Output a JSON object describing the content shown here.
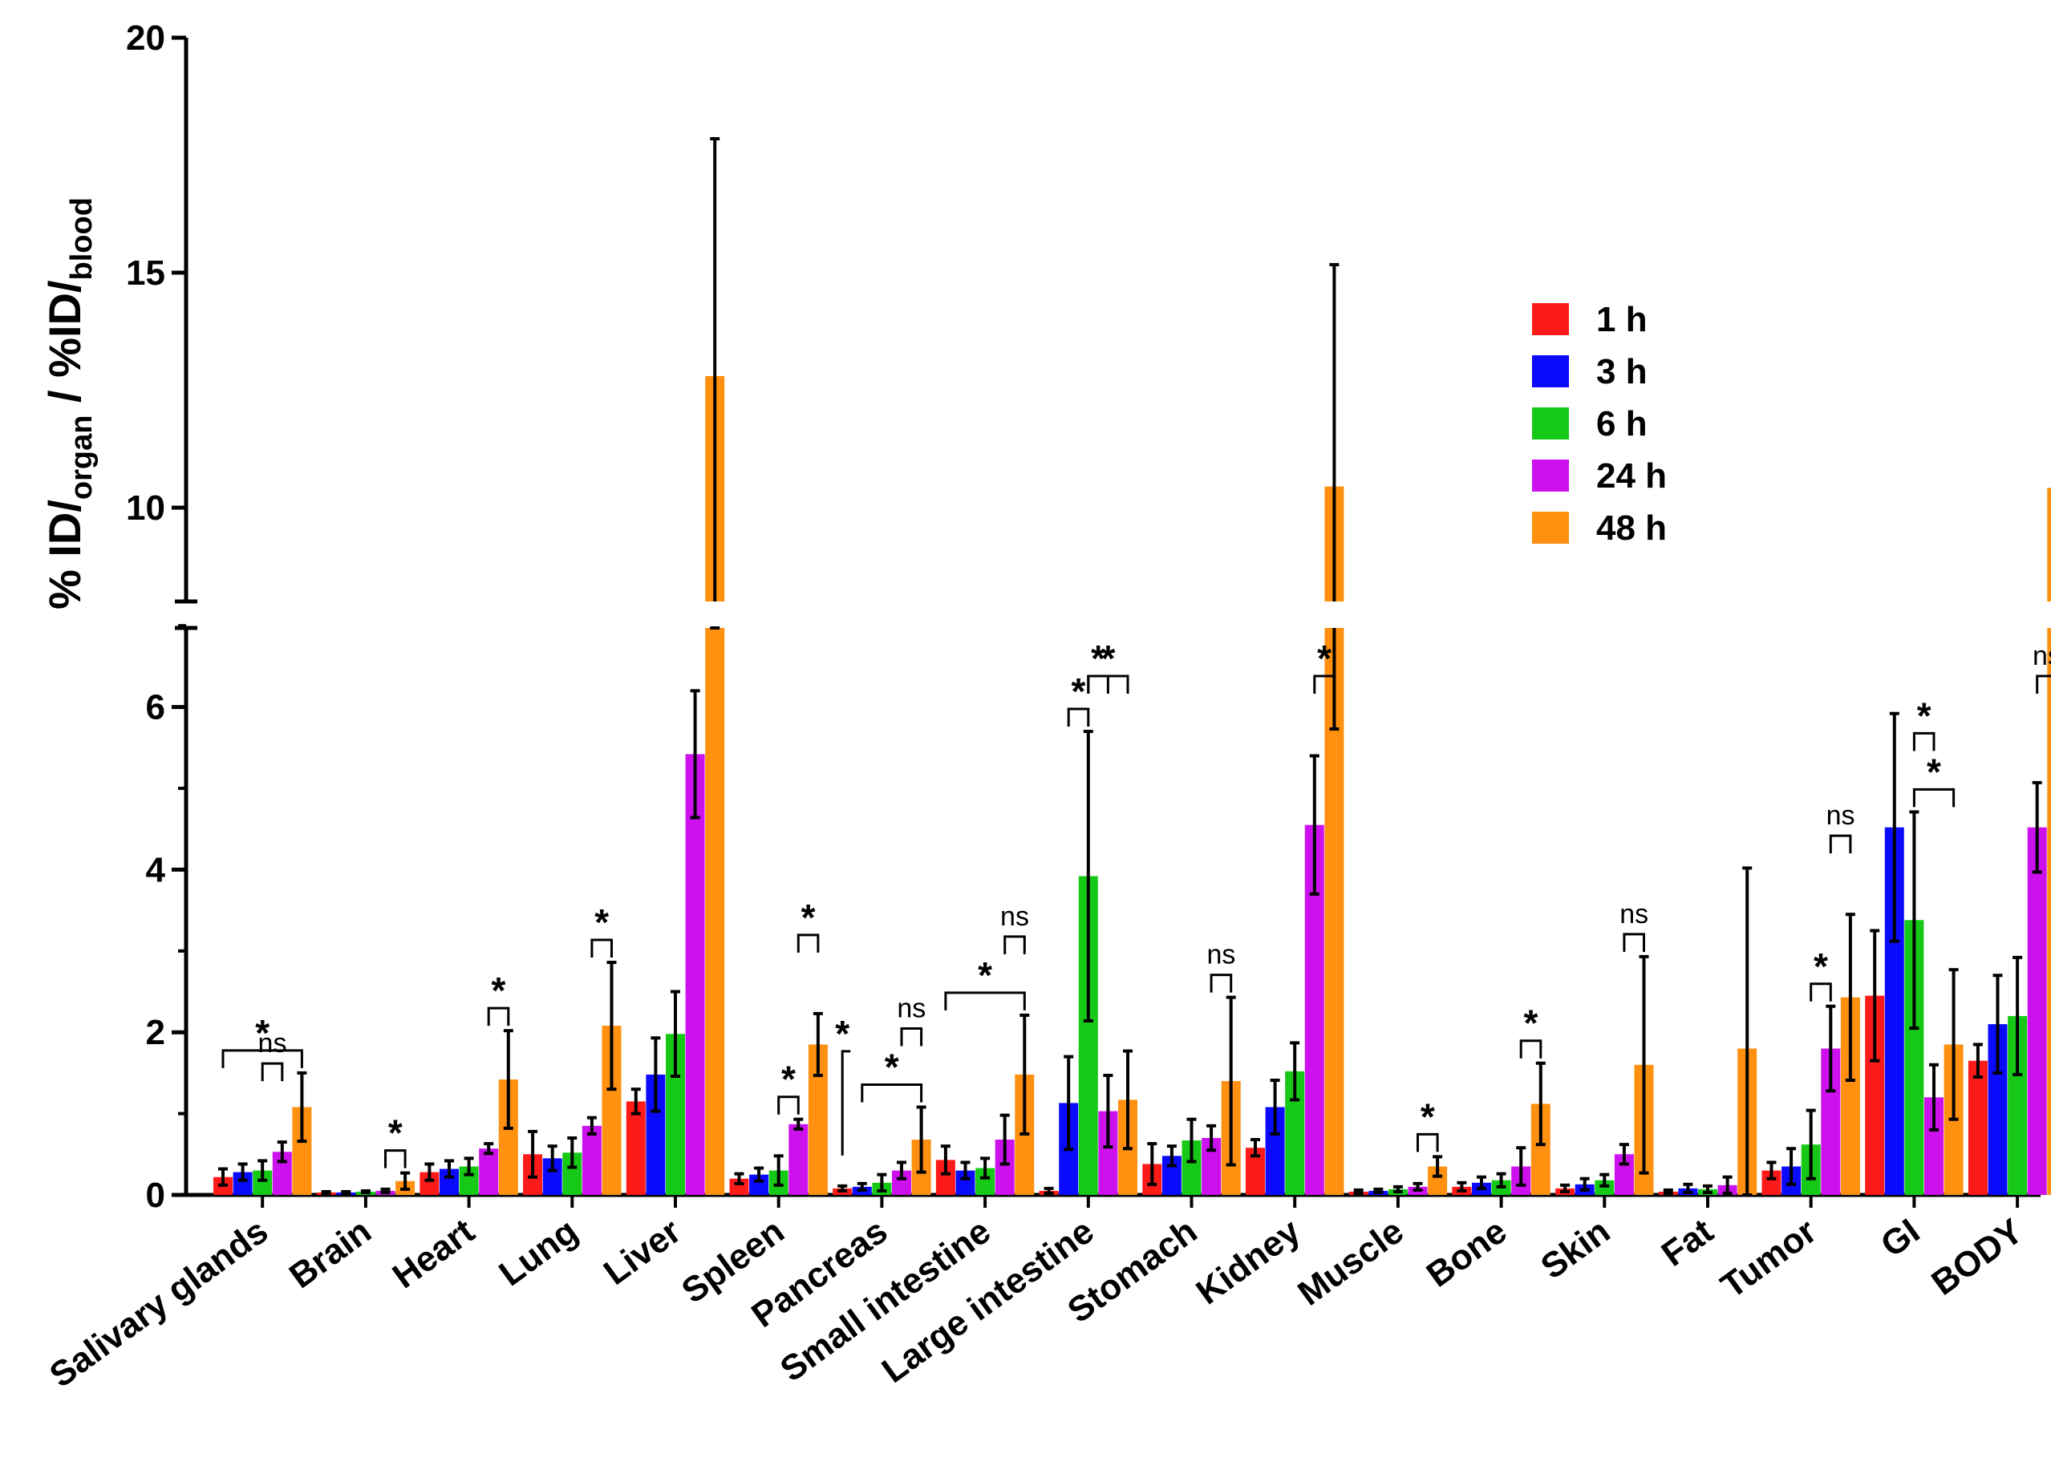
{
  "chart_data": {
    "type": "bar",
    "title": "",
    "xlabel": "",
    "ylabel": {
      "main1": "% ID/",
      "sub1": "organ",
      "main2": " / %ID/",
      "sub2": "blood"
    },
    "ylim": [
      0,
      20
    ],
    "axis_break": [
      7.2,
      8.2
    ],
    "lower_ticks": [
      {
        "v": 0,
        "label": "0"
      },
      {
        "v": 2,
        "label": "2"
      },
      {
        "v": 4,
        "label": "4"
      },
      {
        "v": 6,
        "label": "6"
      }
    ],
    "upper_ticks": [
      {
        "v": 10,
        "label": "10"
      },
      {
        "v": 15,
        "label": "15"
      },
      {
        "v": 20,
        "label": "20"
      }
    ],
    "categories": [
      "Salivary glands",
      "Brain",
      "Heart",
      "Lung",
      "Liver",
      "Spleen",
      "Pancreas",
      "Small intestine",
      "Large intestine",
      "Stomach",
      "Kidney",
      "Muscle",
      "Bone",
      "Skin",
      "Fat",
      "Tumor",
      "GI",
      "BODY"
    ],
    "series": [
      {
        "name": "1 h",
        "color": "#ff1a1a",
        "values": [
          0.22,
          0.03,
          0.28,
          0.5,
          1.15,
          0.2,
          0.08,
          0.43,
          0.05,
          0.38,
          0.58,
          0.04,
          0.1,
          0.08,
          0.04,
          0.3,
          2.45,
          1.65
        ],
        "errors": [
          0.1,
          0.01,
          0.1,
          0.28,
          0.15,
          0.06,
          0.03,
          0.17,
          0.03,
          0.25,
          0.1,
          0.02,
          0.05,
          0.04,
          0.02,
          0.1,
          0.8,
          0.2
        ]
      },
      {
        "name": "3 h",
        "color": "#0a0aff",
        "values": [
          0.28,
          0.03,
          0.32,
          0.45,
          1.48,
          0.25,
          0.1,
          0.3,
          1.13,
          0.48,
          1.08,
          0.05,
          0.15,
          0.13,
          0.08,
          0.35,
          4.52,
          2.1
        ],
        "errors": [
          0.1,
          0.01,
          0.1,
          0.15,
          0.45,
          0.08,
          0.04,
          0.1,
          0.57,
          0.12,
          0.33,
          0.02,
          0.07,
          0.07,
          0.05,
          0.22,
          1.4,
          0.6
        ]
      },
      {
        "name": "6 h",
        "color": "#17c917",
        "values": [
          0.3,
          0.04,
          0.35,
          0.52,
          1.98,
          0.3,
          0.15,
          0.33,
          3.92,
          0.67,
          1.52,
          0.07,
          0.18,
          0.18,
          0.07,
          0.62,
          3.38,
          2.2
        ],
        "errors": [
          0.12,
          0.01,
          0.1,
          0.18,
          0.52,
          0.18,
          0.1,
          0.12,
          1.78,
          0.26,
          0.35,
          0.03,
          0.08,
          0.07,
          0.04,
          0.42,
          1.33,
          0.72
        ]
      },
      {
        "name": "24 h",
        "color": "#cc11ee",
        "values": [
          0.53,
          0.05,
          0.57,
          0.85,
          5.42,
          0.87,
          0.3,
          0.68,
          1.03,
          0.7,
          4.55,
          0.1,
          0.35,
          0.5,
          0.12,
          1.8,
          1.2,
          4.52
        ],
        "errors": [
          0.12,
          0.02,
          0.06,
          0.1,
          0.78,
          0.06,
          0.1,
          0.3,
          0.44,
          0.15,
          0.85,
          0.04,
          0.23,
          0.12,
          0.1,
          0.52,
          0.4,
          0.55
        ]
      },
      {
        "name": "48 h",
        "color": "#ff9010",
        "values": [
          1.08,
          0.17,
          1.42,
          2.08,
          12.8,
          1.85,
          0.68,
          1.48,
          1.17,
          1.4,
          10.45,
          0.35,
          1.12,
          1.6,
          1.8,
          2.43,
          1.85,
          10.42
        ],
        "errors": [
          0.42,
          0.1,
          0.6,
          0.78,
          5.05,
          0.38,
          0.4,
          0.73,
          0.6,
          1.03,
          4.72,
          0.12,
          0.5,
          1.33,
          2.22,
          1.02,
          0.92,
          5.15
        ]
      }
    ],
    "significance": [
      {
        "cat": 0,
        "from": 0,
        "to": 4,
        "label": "*"
      },
      {
        "cat": 0,
        "from": 2,
        "to": 3,
        "label": "ns"
      },
      {
        "cat": 1,
        "from": 3,
        "to": 4,
        "label": "*"
      },
      {
        "cat": 2,
        "from": 3,
        "to": 4,
        "label": "*"
      },
      {
        "cat": 3,
        "from": 3,
        "to": 4,
        "label": "*"
      },
      {
        "cat": 5,
        "from": 2,
        "to": 3,
        "label": "*"
      },
      {
        "cat": 5,
        "from": 3,
        "to": 4,
        "label": "*"
      },
      {
        "cat": 6,
        "from": 1,
        "to": 4,
        "label": "*"
      },
      {
        "cat": 6,
        "from": 3,
        "to": 4,
        "label": "ns"
      },
      {
        "cat": 6,
        "from": 0,
        "to": 0,
        "label": "*",
        "open": true
      },
      {
        "cat": 7,
        "from": 0,
        "to": 4,
        "label": "*"
      },
      {
        "cat": 7,
        "from": 3,
        "to": 4,
        "label": "ns"
      },
      {
        "cat": 8,
        "from": 1,
        "to": 2,
        "label": "*"
      },
      {
        "cat": 8,
        "from": 2,
        "to": 3,
        "label": "*"
      },
      {
        "cat": 8,
        "from": 2,
        "to": 4,
        "label": "*"
      },
      {
        "cat": 9,
        "from": 3,
        "to": 4,
        "label": "ns"
      },
      {
        "cat": 10,
        "from": 3,
        "to": 4,
        "label": "*"
      },
      {
        "cat": 11,
        "from": 3,
        "to": 4,
        "label": "*"
      },
      {
        "cat": 12,
        "from": 3,
        "to": 4,
        "label": "*"
      },
      {
        "cat": 13,
        "from": 3,
        "to": 4,
        "label": "ns"
      },
      {
        "cat": 15,
        "from": 2,
        "to": 3,
        "label": "*"
      },
      {
        "cat": 15,
        "from": 3,
        "to": 4,
        "label": "ns"
      },
      {
        "cat": 16,
        "from": 2,
        "to": 4,
        "label": "*"
      },
      {
        "cat": 16,
        "from": 2,
        "to": 3,
        "label": "*"
      },
      {
        "cat": 17,
        "from": 3,
        "to": 4,
        "label": "ns"
      }
    ],
    "legend_position": "top-right"
  }
}
